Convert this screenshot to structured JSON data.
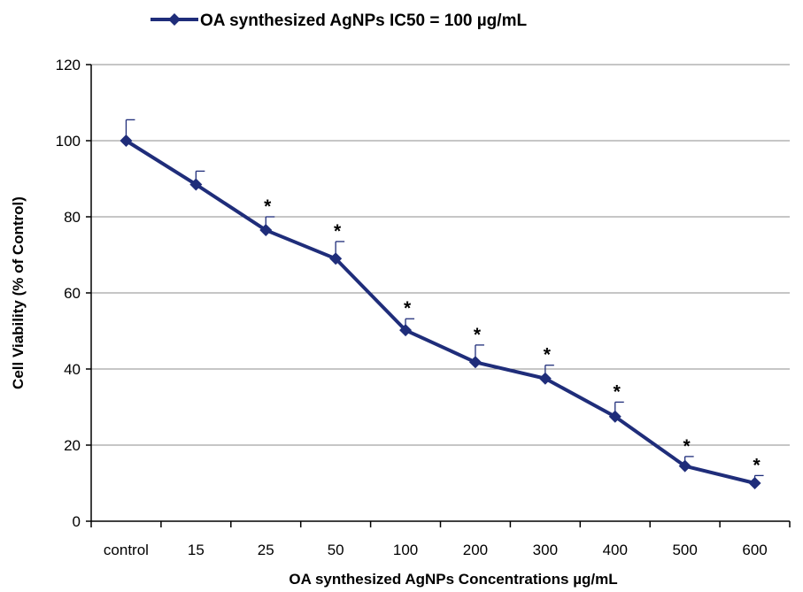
{
  "chart_data": {
    "type": "line",
    "title": "",
    "xlabel": "OA synthesized AgNPs Concentrations µg/mL",
    "ylabel": "Cell Viability (% of Control)",
    "ylim": [
      0,
      120
    ],
    "yticks": [
      0,
      20,
      40,
      60,
      80,
      100,
      120
    ],
    "grid": "horizontal",
    "legend_position": "top",
    "categories": [
      "control",
      "15",
      "25",
      "50",
      "100",
      "200",
      "300",
      "400",
      "500",
      "600"
    ],
    "series": [
      {
        "name": "OA synthesized AgNPs IC50 = 100 µg/mL",
        "color": "#1f2d7a",
        "marker": "diamond",
        "values": [
          100,
          88.5,
          76.5,
          69,
          50.2,
          41.8,
          37.5,
          27.5,
          14.5,
          10
        ],
        "errors": [
          5.5,
          3.5,
          3.5,
          4.5,
          3,
          4.5,
          3.5,
          3.8,
          2.5,
          2
        ]
      }
    ],
    "significance_labels": [
      "",
      "",
      "*",
      "*",
      "*",
      "*",
      "*",
      "*",
      "*",
      "*"
    ]
  }
}
